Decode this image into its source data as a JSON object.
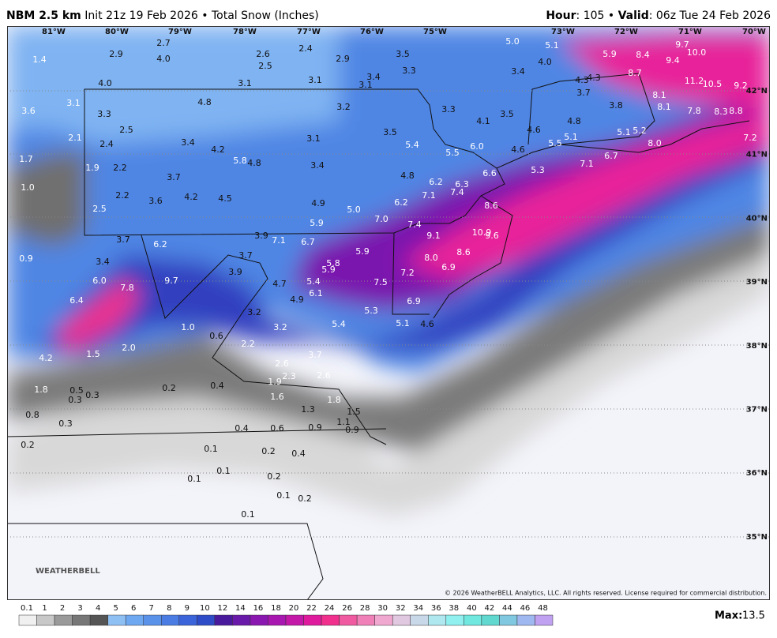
{
  "header": {
    "left": [
      "NBM 2.5 km",
      "Init 21z 19 Feb 2026 • Total Snow (Inches)"
    ],
    "right": [
      "Hour",
      ": 105 • ",
      "Valid",
      ": 06z Tue 24 Feb 2026"
    ]
  },
  "lon_labels": [
    "81°W",
    "80°W",
    "79°W",
    "78°W",
    "77°W",
    "76°W",
    "75°W",
    "73°W",
    "72°W",
    "71°W",
    "70°W"
  ],
  "lat_labels": [
    "42°N",
    "41°N",
    "40°N",
    "39°N",
    "38°N",
    "37°N",
    "36°N",
    "35°N"
  ],
  "snow_labels": [
    "1.4",
    "2.9",
    "2.7",
    "4.0",
    "2.6",
    "2.4",
    "2.5",
    "2.9",
    "3.5",
    "3.3",
    "5.0",
    "5.1",
    "4.0",
    "3.4",
    "5.9",
    "8.4",
    "9.7",
    "10.0",
    "9.4",
    "8.7",
    "11.2",
    "10.5",
    "9.2",
    "4.0",
    "3.1",
    "3.1",
    "3.1",
    "3.4",
    "4.3",
    "4.3",
    "3.7",
    "8.1",
    "3.1",
    "4.8",
    "3.2",
    "3.3",
    "3.5",
    "4.1",
    "3.8",
    "8.1",
    "7.8",
    "8.3",
    "8.8",
    "3.6",
    "3.3",
    "2.5",
    "2.1",
    "2.4",
    "3.4",
    "4.2",
    "3.1",
    "3.5",
    "5.4",
    "4.6",
    "4.8",
    "5.1",
    "5.2",
    "8.0",
    "5.5",
    "5.1",
    "7.2",
    "1.7",
    "1.9",
    "2.2",
    "5.8",
    "4.8",
    "3.4",
    "5.5",
    "6.0",
    "4.6",
    "6.7",
    "7.1",
    "5.3",
    "3.7",
    "4.8",
    "6.6",
    "6.2",
    "6.3",
    "7.4",
    "1.0",
    "2.2",
    "4.2",
    "4.5",
    "3.6",
    "7.1",
    "4.9",
    "6.2",
    "8.6",
    "2.5",
    "5.0",
    "7.0",
    "7.4",
    "5.9",
    "9.1",
    "10.9",
    "9.6",
    "3.7",
    "6.2",
    "3.9",
    "7.1",
    "6.7",
    "5.9",
    "8.0",
    "8.6",
    "0.9",
    "3.4",
    "3.7",
    "5.8",
    "5.9",
    "6.9",
    "7.2",
    "3.9",
    "6.0",
    "7.8",
    "9.7",
    "4.7",
    "5.4",
    "7.5",
    "6.1",
    "6.4",
    "4.9",
    "6.9",
    "5.3",
    "3.2",
    "5.4",
    "5.1",
    "4.6",
    "1.0",
    "3.2",
    "0.6",
    "2.2",
    "2.0",
    "1.5",
    "4.2",
    "3.7",
    "2.6",
    "2.3",
    "1.9",
    "2.6",
    "0.2",
    "0.4",
    "1.8",
    "0.5",
    "0.3",
    "1.6",
    "0.3",
    "1.8",
    "1.3",
    "1.5",
    "0.8",
    "1.1",
    "0.3",
    "0.4",
    "0.6",
    "0.9",
    "0.9",
    "0.2",
    "0.1",
    "0.2",
    "0.4",
    "0.1",
    "0.2",
    "0.1",
    "0.1",
    "0.2",
    "0.1"
  ],
  "copyright": "© 2026 WeatherBELL Analytics, LLC. All rights reserved. License required for commercial distribution.",
  "logo": "WEATHERBELL",
  "colorbar": {
    "ticks": [
      0.1,
      1,
      2,
      3,
      4,
      5,
      6,
      7,
      8,
      9,
      10,
      12,
      14,
      16,
      18,
      20,
      22,
      24,
      26,
      28,
      30,
      32,
      34,
      36,
      38,
      40,
      42,
      44,
      46,
      48
    ],
    "colors": [
      "#f0f0f0",
      "#c8c8c8",
      "#9a9a9a",
      "#777777",
      "#555555",
      "#8fc0f4",
      "#6ea8f0",
      "#5a92ea",
      "#4a7ce4",
      "#3c64da",
      "#2f4cc8",
      "#4a1a9c",
      "#6a1aa8",
      "#8a18b0",
      "#a818b0",
      "#c418a8",
      "#e01a9c",
      "#f0308c",
      "#f05aa0",
      "#f080b8",
      "#f0a8d0",
      "#e0c8e0",
      "#c8d8e8",
      "#b0e8f0",
      "#90f0f0",
      "#70e8e0",
      "#60d8d0",
      "#80c8e0",
      "#a0b8f0",
      "#c0a0f0"
    ]
  },
  "max_label": "Max:",
  "max_value": "13.5"
}
